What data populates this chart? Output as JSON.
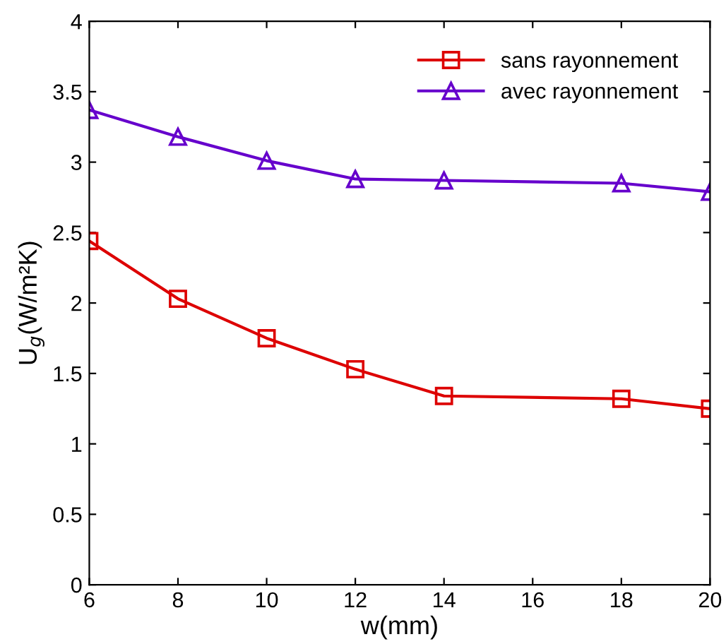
{
  "chart_data": {
    "type": "line",
    "xlabel": "w(mm)",
    "ylabel": "U$_{g}$(W/m²K)",
    "x": [
      6,
      8,
      10,
      12,
      14,
      18,
      20
    ],
    "series": [
      {
        "name": "sans rayonnement",
        "color": "#dd0000",
        "marker": "square",
        "values": [
          2.44,
          2.03,
          1.75,
          1.53,
          1.34,
          1.32,
          1.25
        ]
      },
      {
        "name": "avec rayonnement",
        "color": "#6600cc",
        "marker": "triangle",
        "values": [
          3.37,
          3.18,
          3.01,
          2.88,
          2.87,
          2.85,
          2.79
        ]
      }
    ],
    "xlim": [
      6,
      20
    ],
    "xticks": [
      6,
      8,
      10,
      12,
      14,
      16,
      18,
      20
    ],
    "ylim": [
      0,
      4
    ],
    "yticks": [
      0,
      0.5,
      1,
      1.5,
      2,
      2.5,
      3,
      3.5,
      4
    ],
    "legend": "top right",
    "line_style": "solid",
    "grid": false
  }
}
